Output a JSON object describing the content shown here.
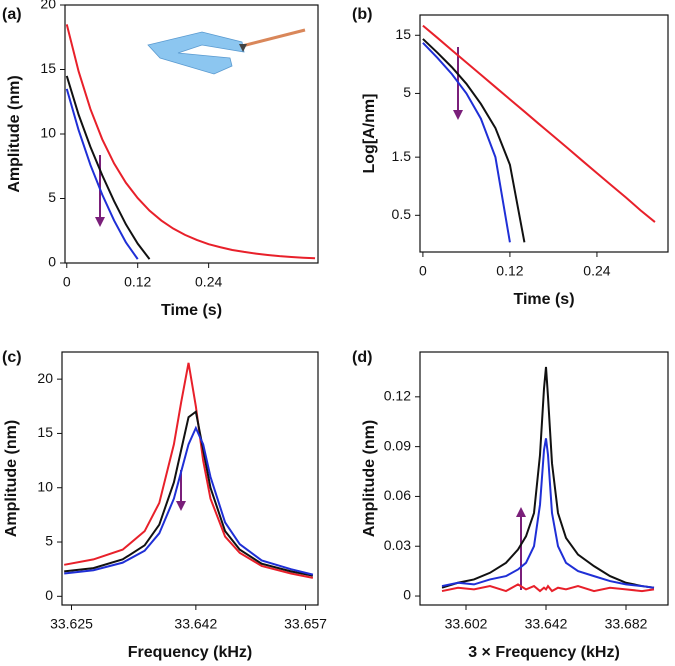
{
  "chart_data": [
    {
      "type": "line",
      "label": "(a)",
      "x_label": "Time (s)",
      "y_label": "Amplitude (nm)",
      "xlim": [
        -0.003,
        0.425
      ],
      "ylim": [
        0,
        20
      ],
      "xticks": [
        0,
        0.12,
        0.24
      ],
      "yticks": [
        0,
        5,
        10,
        15,
        20
      ],
      "x": [
        0,
        0.02,
        0.04,
        0.06,
        0.08,
        0.1,
        0.12,
        0.14,
        0.16,
        0.18,
        0.2,
        0.22,
        0.24,
        0.26,
        0.28,
        0.3,
        0.32,
        0.34,
        0.36,
        0.38,
        0.4,
        0.42
      ],
      "series": [
        {
          "color": "#e8202a",
          "values": [
            18.5,
            14.86,
            11.93,
            9.59,
            7.72,
            6.22,
            5.03,
            4.06,
            3.29,
            2.67,
            2.18,
            1.79,
            1.46,
            1.22,
            1.01,
            0.86,
            0.73,
            0.62,
            0.53,
            0.47,
            0.41,
            0.37
          ]
        },
        {
          "color": "#111111",
          "values": [
            14.5,
            11.5,
            9.0,
            6.8,
            4.8,
            3.0,
            1.5,
            0.3,
            null,
            null,
            null,
            null,
            null,
            null,
            null,
            null,
            null,
            null,
            null,
            null,
            null,
            null
          ]
        },
        {
          "color": "#1f2fd6",
          "values": [
            13.5,
            10.3,
            7.6,
            5.3,
            3.3,
            1.6,
            0.3,
            null,
            null,
            null,
            null,
            null,
            null,
            null,
            null,
            null,
            null,
            null,
            null,
            null,
            null,
            null
          ]
        }
      ]
    },
    {
      "type": "line",
      "label": "(b)",
      "x_label": "Time (s)",
      "y_label": "Log[A/nm]",
      "log_y": true,
      "xlim": [
        -0.004,
        0.338
      ],
      "ylim": [
        0.25,
        22
      ],
      "xticks": [
        0,
        0.12,
        0.24
      ],
      "yticks": [
        0.5,
        1.5,
        5,
        15
      ],
      "x": [
        0,
        0.02,
        0.04,
        0.06,
        0.08,
        0.1,
        0.12,
        0.14,
        0.16,
        0.18,
        0.2,
        0.22,
        0.24,
        0.26,
        0.28,
        0.3,
        0.32
      ],
      "series": [
        {
          "color": "#e8202a",
          "values": [
            18,
            14.3,
            11.3,
            8.97,
            7.11,
            5.64,
            4.47,
            3.55,
            2.81,
            2.23,
            1.77,
            1.4,
            1.11,
            0.88,
            0.7,
            0.55,
            0.44
          ]
        },
        {
          "color": "#111111",
          "values": [
            14,
            10.8,
            8.2,
            6.0,
            4.1,
            2.6,
            1.3,
            0.3,
            null,
            null,
            null,
            null,
            null,
            null,
            null,
            null,
            null
          ]
        },
        {
          "color": "#1f2fd6",
          "values": [
            13,
            9.8,
            7.2,
            5.0,
            3.1,
            1.5,
            0.3,
            null,
            null,
            null,
            null,
            null,
            null,
            null,
            null,
            null,
            null
          ]
        }
      ]
    },
    {
      "type": "line",
      "label": "(c)",
      "x_label": "Frequency (kHz)",
      "y_label": "Amplitude (nm)",
      "xlim": [
        33.6237,
        33.6587
      ],
      "ylim": [
        -0.8,
        22.5
      ],
      "xticks": [
        33.625,
        33.642,
        33.657
      ],
      "yticks": [
        0,
        5,
        10,
        15,
        20
      ],
      "x": [
        33.624,
        33.628,
        33.632,
        33.635,
        33.637,
        33.639,
        33.64,
        33.641,
        33.642,
        33.643,
        33.644,
        33.646,
        33.648,
        33.651,
        33.655,
        33.658
      ],
      "series": [
        {
          "color": "#e8202a",
          "values": [
            2.9,
            3.4,
            4.3,
            6.0,
            8.6,
            14.0,
            17.9,
            21.5,
            17.5,
            12.5,
            9.0,
            5.5,
            4.0,
            2.8,
            2.1,
            1.7
          ]
        },
        {
          "color": "#111111",
          "values": [
            2.3,
            2.6,
            3.4,
            4.7,
            6.6,
            10.5,
            13.5,
            16.5,
            17.0,
            13.5,
            10.0,
            6.0,
            4.3,
            3.0,
            2.3,
            1.9
          ]
        },
        {
          "color": "#1f2fd6",
          "values": [
            2.1,
            2.4,
            3.1,
            4.2,
            5.8,
            9.0,
            11.5,
            14.0,
            15.5,
            14.0,
            11.0,
            6.8,
            4.8,
            3.3,
            2.5,
            2.0
          ]
        }
      ]
    },
    {
      "type": "line",
      "label": "(d)",
      "x_label": "3 × Frequency (kHz)",
      "y_label": "Amplitude (nm)",
      "xlim": [
        33.579,
        33.703
      ],
      "ylim": [
        -0.0054,
        0.147
      ],
      "xticks": [
        33.602,
        33.642,
        33.682
      ],
      "yticks": [
        0,
        0.03,
        0.06,
        0.09,
        0.12
      ],
      "x": [
        33.59,
        33.598,
        33.606,
        33.614,
        33.622,
        33.628,
        33.632,
        33.636,
        33.639,
        33.641,
        33.642,
        33.643,
        33.645,
        33.648,
        33.652,
        33.658,
        33.666,
        33.674,
        33.682,
        33.69,
        33.696
      ],
      "series": [
        {
          "color": "#111111",
          "values": [
            0.005,
            0.008,
            0.01,
            0.014,
            0.02,
            0.028,
            0.036,
            0.05,
            0.085,
            0.125,
            0.138,
            0.12,
            0.08,
            0.05,
            0.035,
            0.025,
            0.018,
            0.012,
            0.008,
            0.006,
            0.005
          ]
        },
        {
          "color": "#1f2fd6",
          "values": [
            0.006,
            0.008,
            0.007,
            0.01,
            0.012,
            0.016,
            0.02,
            0.03,
            0.055,
            0.088,
            0.095,
            0.085,
            0.05,
            0.03,
            0.02,
            0.015,
            0.012,
            0.009,
            0.007,
            0.006,
            0.005
          ]
        },
        {
          "color": "#e8202a",
          "values": [
            0.003,
            0.005,
            0.004,
            0.006,
            0.003,
            0.007,
            0.004,
            0.006,
            0.003,
            0.005,
            0.004,
            0.006,
            0.003,
            0.005,
            0.004,
            0.006,
            0.003,
            0.005,
            0.004,
            0.003,
            0.004
          ]
        }
      ]
    }
  ]
}
